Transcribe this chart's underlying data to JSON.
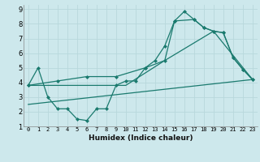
{
  "xlabel": "Humidex (Indice chaleur)",
  "bg_color": "#cde8ec",
  "grid_color": "#b8d8dc",
  "line_color": "#1a7a6e",
  "xlim": [
    -0.5,
    23.5
  ],
  "ylim": [
    1,
    9.3
  ],
  "xticks": [
    0,
    1,
    2,
    3,
    4,
    5,
    6,
    7,
    8,
    9,
    10,
    11,
    12,
    13,
    14,
    15,
    16,
    17,
    18,
    19,
    20,
    21,
    22,
    23
  ],
  "yticks": [
    1,
    2,
    3,
    4,
    5,
    6,
    7,
    8,
    9
  ],
  "line1_x": [
    0,
    1,
    2,
    3,
    4,
    5,
    6,
    7,
    8,
    9,
    10,
    11,
    12,
    13,
    14,
    15,
    16,
    17,
    18,
    19,
    20,
    21,
    22,
    23
  ],
  "line1_y": [
    3.8,
    5.0,
    3.0,
    2.2,
    2.2,
    1.5,
    1.4,
    2.2,
    2.2,
    3.8,
    4.1,
    4.1,
    5.0,
    5.5,
    6.5,
    8.2,
    8.85,
    8.3,
    7.75,
    7.5,
    7.4,
    5.7,
    4.9,
    4.2
  ],
  "line2_x": [
    0,
    3,
    6,
    9,
    12,
    14,
    15,
    17,
    18,
    19,
    20,
    21,
    22,
    23
  ],
  "line2_y": [
    3.8,
    4.1,
    4.4,
    4.4,
    5.0,
    5.5,
    8.2,
    8.3,
    7.75,
    7.5,
    7.4,
    5.7,
    4.9,
    4.2
  ],
  "line3_x": [
    0,
    5,
    10,
    14,
    19,
    23
  ],
  "line3_y": [
    3.8,
    3.8,
    3.8,
    5.5,
    7.5,
    4.2
  ],
  "line4_x": [
    0,
    23
  ],
  "line4_y": [
    2.5,
    4.2
  ]
}
